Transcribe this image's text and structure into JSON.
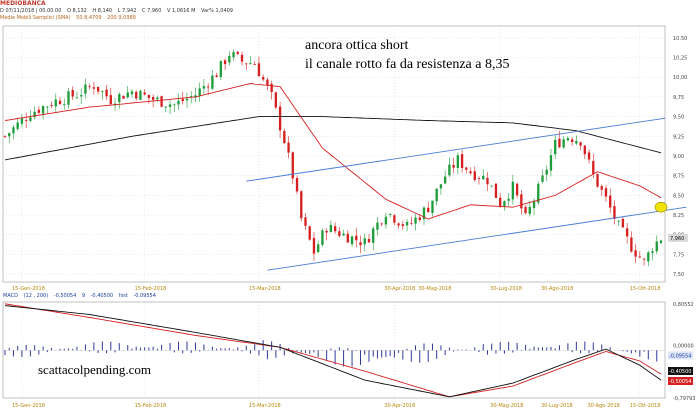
{
  "header": {
    "symbol": "MEDIOBANCA",
    "ohlc": [
      "D 07/11/2018 | 00.00.00",
      "O 8,132",
      "H 8,140",
      "L 7,942",
      "C 7,960",
      "V 1,0616 M",
      "Var% 1,0409"
    ],
    "ma_legend": [
      "Medie Mobili Semplici (SMA)",
      "50 8,4709",
      "200 9,0389"
    ]
  },
  "annotations": {
    "line1": "ancora ottica short",
    "line2": "il canale rotto fa da resistenza a 8,35",
    "site": "scattacolpending.com"
  },
  "macd_header": [
    "MACD",
    "(12 , 200)",
    "-0,50054",
    "9",
    "-0,40500",
    "hist",
    "-0,09554"
  ],
  "price_axis": {
    "ticks": [
      "10,50",
      "10,25",
      "10,00",
      "9,75",
      "9,50",
      "9,25",
      "9,00",
      "8,75",
      "8,50",
      "8,25",
      "8,00",
      "7,75",
      "7,50"
    ],
    "last_label": "7,960"
  },
  "macd_axis": {
    "top": "0,80552",
    "zero": "0,00000",
    "bottom": "-0,79793",
    "labels": [
      "-0,09554",
      "-0,40500",
      "-0,50054"
    ]
  },
  "x_axis_top": [
    "15-Gen-2018",
    "15-Feb-2018",
    "15-Mar-2018",
    "30-Apr-2018",
    "30-Mag-2018",
    "30-Lug-2018",
    "30-Ago-2018",
    "15-Ott-2018"
  ],
  "x_axis_bottom": [
    "15-Gen-2018",
    "15-Feb-2018",
    "15-Mar-2018",
    "30-Apr-2018",
    "30-Mag-2018",
    "30-Lug-2018",
    "30-Ago-2018",
    "15-Ott-2018"
  ],
  "colors": {
    "up": "#1f9d3a",
    "down": "#d62020",
    "ma50": "#d62020",
    "ma200": "#111111",
    "channel": "#4a7bd8",
    "grid": "#c8c8c8",
    "macd": "#111111",
    "signal": "#d62020",
    "hist": "#2e3a9c",
    "marker": "#f2e200",
    "label_bg": "#d9d9d9"
  },
  "chart_data": {
    "type": "candlestick",
    "series": [
      {
        "name": "MEDIOBANCA",
        "last_close": 7.96
      },
      {
        "name": "50",
        "value": 8.4709
      },
      {
        "name": "200",
        "value": 9.0389
      }
    ],
    "close_path": [
      [
        0,
        9.25
      ],
      [
        6,
        9.55
      ],
      [
        12,
        9.7
      ],
      [
        17,
        9.78
      ],
      [
        21,
        9.9
      ],
      [
        25,
        9.72
      ],
      [
        30,
        9.82
      ],
      [
        35,
        9.72
      ],
      [
        40,
        9.65
      ],
      [
        45,
        9.78
      ],
      [
        50,
        10.05
      ],
      [
        53,
        10.3
      ],
      [
        56,
        10.2
      ],
      [
        59,
        10.18
      ],
      [
        63,
        9.75
      ],
      [
        66,
        9.2
      ],
      [
        68,
        8.75
      ],
      [
        70,
        8.2
      ],
      [
        73,
        7.78
      ],
      [
        76,
        8.1
      ],
      [
        80,
        8.0
      ],
      [
        85,
        7.9
      ],
      [
        90,
        8.3
      ],
      [
        95,
        8.1
      ],
      [
        100,
        8.35
      ],
      [
        104,
        8.75
      ],
      [
        107,
        8.95
      ],
      [
        110,
        8.8
      ],
      [
        114,
        8.7
      ],
      [
        117,
        8.4
      ],
      [
        120,
        8.6
      ],
      [
        123,
        8.2
      ],
      [
        127,
        8.7
      ],
      [
        130,
        9.15
      ],
      [
        133,
        9.25
      ],
      [
        136,
        9.2
      ],
      [
        139,
        8.75
      ],
      [
        142,
        8.45
      ],
      [
        145,
        8.1
      ],
      [
        148,
        7.85
      ],
      [
        151,
        7.65
      ],
      [
        153,
        7.85
      ],
      [
        155,
        7.96
      ]
    ],
    "ma50_path": [
      [
        0,
        9.45
      ],
      [
        20,
        9.62
      ],
      [
        45,
        9.75
      ],
      [
        58,
        9.92
      ],
      [
        65,
        9.88
      ],
      [
        75,
        9.1
      ],
      [
        90,
        8.45
      ],
      [
        100,
        8.2
      ],
      [
        110,
        8.38
      ],
      [
        120,
        8.35
      ],
      [
        130,
        8.5
      ],
      [
        140,
        8.8
      ],
      [
        150,
        8.62
      ],
      [
        155,
        8.47
      ]
    ],
    "ma200_path": [
      [
        0,
        8.95
      ],
      [
        30,
        9.25
      ],
      [
        60,
        9.5
      ],
      [
        75,
        9.5
      ],
      [
        100,
        9.45
      ],
      [
        120,
        9.42
      ],
      [
        135,
        9.32
      ],
      [
        155,
        9.04
      ]
    ],
    "channel_upper": [
      [
        57,
        8.68
      ],
      [
        156,
        9.48
      ]
    ],
    "channel_lower": [
      [
        62,
        7.55
      ],
      [
        161,
        8.35
      ]
    ],
    "marker": [
      155,
      8.35
    ],
    "ylim": [
      7.4,
      10.65
    ],
    "macd": {
      "macd_path": [
        [
          0,
          0.75
        ],
        [
          20,
          0.6
        ],
        [
          45,
          0.3
        ],
        [
          65,
          0.05
        ],
        [
          85,
          -0.5
        ],
        [
          105,
          -0.78
        ],
        [
          120,
          -0.55
        ],
        [
          135,
          -0.15
        ],
        [
          142,
          0.02
        ],
        [
          150,
          -0.25
        ],
        [
          155,
          -0.5
        ]
      ],
      "signal_path": [
        [
          0,
          0.78
        ],
        [
          20,
          0.55
        ],
        [
          45,
          0.25
        ],
        [
          65,
          0.05
        ],
        [
          85,
          -0.35
        ],
        [
          105,
          -0.78
        ],
        [
          120,
          -0.6
        ],
        [
          135,
          -0.2
        ],
        [
          142,
          -0.02
        ],
        [
          150,
          -0.18
        ],
        [
          155,
          -0.4
        ]
      ],
      "ylim": [
        -0.8,
        0.81
      ]
    }
  }
}
